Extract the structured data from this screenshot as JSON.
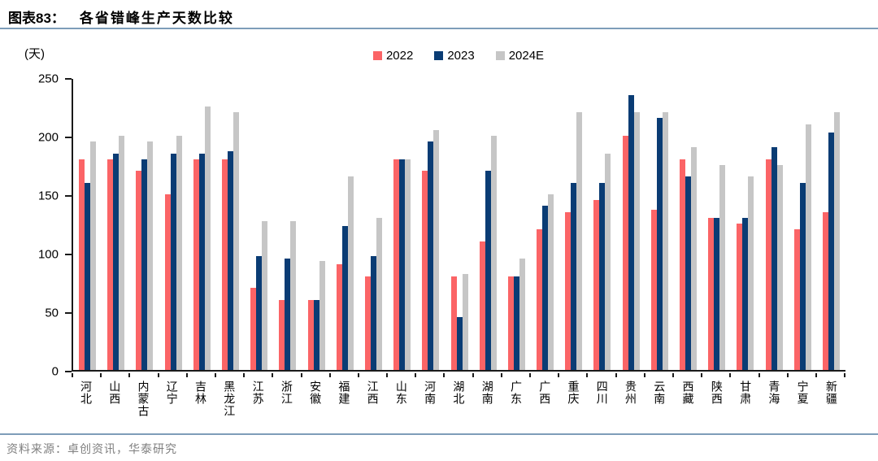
{
  "header": {
    "figure_label": "图表83：",
    "title": "各省错峰生产天数比较"
  },
  "footer": {
    "source_text": "资料来源：卓创资讯，华泰研究"
  },
  "colors": {
    "accent_line": "#7e9db9",
    "axis": "#1a1a1a",
    "source_text": "#7f7f7f"
  },
  "chart_data": {
    "type": "bar",
    "title": "各省错峰生产天数比较",
    "unit_label": "(天)",
    "xlabel": "",
    "ylabel": "天",
    "ylim": [
      0,
      250
    ],
    "y_ticks": [
      0,
      50,
      100,
      150,
      200,
      250
    ],
    "grid": false,
    "legend_position": "top-center",
    "categories": [
      "河北",
      "山西",
      "内蒙古",
      "辽宁",
      "吉林",
      "黑龙江",
      "江苏",
      "浙江",
      "安徽",
      "福建",
      "江西",
      "山东",
      "河南",
      "湖北",
      "湖南",
      "广东",
      "广西",
      "重庆",
      "四川",
      "贵州",
      "云南",
      "西藏",
      "陕西",
      "甘肃",
      "青海",
      "宁夏",
      "新疆"
    ],
    "series": [
      {
        "name": "2022",
        "color": "#fb6466",
        "values": [
          180,
          180,
          170,
          150,
          180,
          180,
          70,
          60,
          60,
          90,
          80,
          180,
          170,
          80,
          110,
          80,
          120,
          135,
          145,
          200,
          137,
          180,
          130,
          125,
          180,
          120,
          135
        ]
      },
      {
        "name": "2023",
        "color": "#0a3c74",
        "values": [
          160,
          185,
          180,
          185,
          185,
          187,
          97,
          95,
          60,
          123,
          97,
          180,
          195,
          45,
          170,
          80,
          140,
          160,
          160,
          235,
          215,
          165,
          130,
          130,
          190,
          160,
          203
        ]
      },
      {
        "name": "2024E",
        "color": "#c6c6c6",
        "values": [
          195,
          200,
          195,
          200,
          225,
          220,
          127,
          127,
          93,
          165,
          130,
          180,
          205,
          82,
          200,
          95,
          150,
          220,
          185,
          220,
          220,
          190,
          175,
          165,
          175,
          210,
          220
        ]
      }
    ]
  }
}
